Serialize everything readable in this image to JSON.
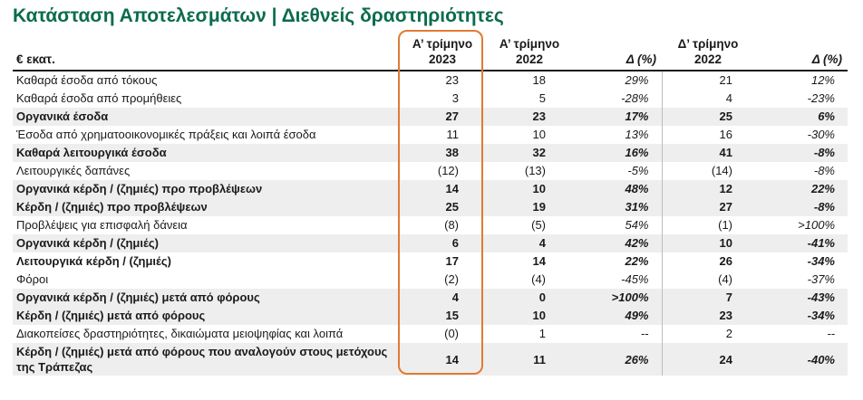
{
  "title": "Κατάσταση Αποτελεσμάτων | Διεθνείς δραστηριότητες",
  "header": {
    "label": "€ εκατ.",
    "col1_line1": "Α’ τρίμηνο",
    "col1_line2": "2023",
    "col2_line1": "Α’ τρίμηνο",
    "col2_line2": "2022",
    "col3": "Δ (%)",
    "col4_line1": "Δ’ τρίμηνο",
    "col4_line2": "2022",
    "col5": "Δ (%)"
  },
  "rows": [
    {
      "label": "Καθαρά έσοδα από τόκους",
      "q1_2023": "23",
      "q1_2022": "18",
      "d1": "29%",
      "q4_2022": "21",
      "d2": "12%",
      "bold": false,
      "shade": false
    },
    {
      "label": "Καθαρά έσοδα από προμήθειες",
      "q1_2023": "3",
      "q1_2022": "5",
      "d1": "-28%",
      "q4_2022": "4",
      "d2": "-23%",
      "bold": false,
      "shade": false
    },
    {
      "label": "Οργανικά έσοδα",
      "q1_2023": "27",
      "q1_2022": "23",
      "d1": "17%",
      "q4_2022": "25",
      "d2": "6%",
      "bold": true,
      "shade": true
    },
    {
      "label": "Έσοδα από χρηματοοικονομικές πράξεις και λοιπά έσοδα",
      "q1_2023": "11",
      "q1_2022": "10",
      "d1": "13%",
      "q4_2022": "16",
      "d2": "-30%",
      "bold": false,
      "shade": false
    },
    {
      "label": "Καθαρά λειτουργικά έσοδα",
      "q1_2023": "38",
      "q1_2022": "32",
      "d1": "16%",
      "q4_2022": "41",
      "d2": "-8%",
      "bold": true,
      "shade": true
    },
    {
      "label": "Λειτουργικές δαπάνες",
      "q1_2023": "(12)",
      "q1_2022": "(13)",
      "d1": "-5%",
      "q4_2022": "(14)",
      "d2": "-8%",
      "bold": false,
      "shade": false
    },
    {
      "label": "Οργανικά κέρδη / (ζημιές) προ προβλέψεων",
      "q1_2023": "14",
      "q1_2022": "10",
      "d1": "48%",
      "q4_2022": "12",
      "d2": "22%",
      "bold": true,
      "shade": true
    },
    {
      "label": "Κέρδη / (ζημιές) προ προβλέψεων",
      "q1_2023": "25",
      "q1_2022": "19",
      "d1": "31%",
      "q4_2022": "27",
      "d2": "-8%",
      "bold": true,
      "shade": true
    },
    {
      "label": "Προβλέψεις για επισφαλή δάνεια",
      "q1_2023": "(8)",
      "q1_2022": "(5)",
      "d1": "54%",
      "q4_2022": "(1)",
      "d2": ">100%",
      "bold": false,
      "shade": false
    },
    {
      "label": "Οργανικά κέρδη / (ζημιές)",
      "q1_2023": "6",
      "q1_2022": "4",
      "d1": "42%",
      "q4_2022": "10",
      "d2": "-41%",
      "bold": true,
      "shade": true
    },
    {
      "label": "Λειτουργικά κέρδη / (ζημιές)",
      "q1_2023": "17",
      "q1_2022": "14",
      "d1": "22%",
      "q4_2022": "26",
      "d2": "-34%",
      "bold": true,
      "shade": false
    },
    {
      "label": "Φόροι",
      "q1_2023": "(2)",
      "q1_2022": "(4)",
      "d1": "-45%",
      "q4_2022": "(4)",
      "d2": "-37%",
      "bold": false,
      "shade": false
    },
    {
      "label": "Οργανικά κέρδη / (ζημιές) μετά από φόρους",
      "q1_2023": "4",
      "q1_2022": "0",
      "d1": ">100%",
      "q4_2022": "7",
      "d2": "-43%",
      "bold": true,
      "shade": true
    },
    {
      "label": "Κέρδη / (ζημιές) μετά από φόρους",
      "q1_2023": "15",
      "q1_2022": "10",
      "d1": "49%",
      "q4_2022": "23",
      "d2": "-34%",
      "bold": true,
      "shade": true
    },
    {
      "label": "Διακοπείσες δραστηριότητες, δικαιώματα μειοψηφίας και λοιπά",
      "q1_2023": "(0)",
      "q1_2022": "1",
      "d1": "--",
      "q4_2022": "2",
      "d2": "--",
      "bold": false,
      "shade": false
    },
    {
      "label": "Κέρδη / (ζημιές) μετά από φόρους που αναλογούν στους μετόχους της Τράπεζας",
      "q1_2023": "14",
      "q1_2022": "11",
      "d1": "26%",
      "q4_2022": "24",
      "d2": "-40%",
      "bold": true,
      "shade": true,
      "tall": true
    }
  ],
  "colors": {
    "title": "#0b6b4f",
    "highlight": "#e07b34",
    "shade": "#eeeeee"
  }
}
